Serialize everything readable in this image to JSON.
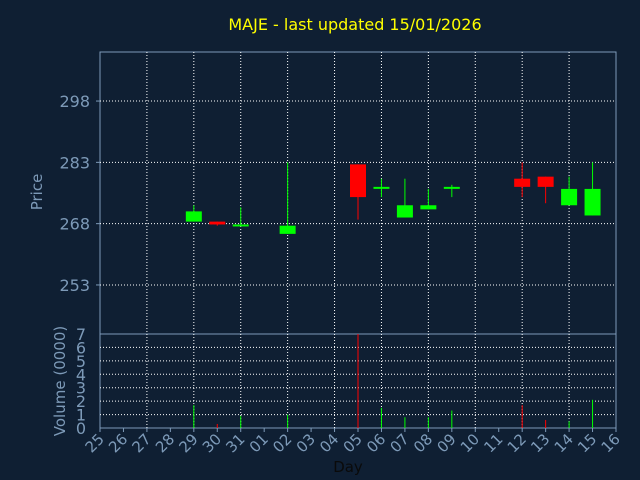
{
  "colors": {
    "background": "#0f1f33",
    "title": "#ffff00",
    "axis_text": "#7d9ab8",
    "grid": "#ffffff",
    "up": "#00ff00",
    "down": "#ff0000"
  },
  "chart_data": {
    "type": "candlestick",
    "title": "MAJE - last updated 15/01/2026",
    "xlabel": "Day",
    "ylabel": "Price",
    "volume_label": "Volume (0000)",
    "x_ticks": [
      "25",
      "26",
      "27",
      "28",
      "29",
      "30",
      "31",
      "01",
      "02",
      "03",
      "04",
      "05",
      "06",
      "07",
      "08",
      "09",
      "10",
      "11",
      "12",
      "13",
      "14",
      "15",
      "16"
    ],
    "price_ticks": [
      253,
      268,
      283,
      298
    ],
    "price_ylim": [
      241,
      310
    ],
    "volume_ticks": [
      0,
      1,
      2,
      3,
      4,
      5,
      6,
      7
    ],
    "volume_ylim": [
      0,
      7
    ],
    "grid": true,
    "candles": [
      {
        "day": "29",
        "open": 268.5,
        "high": 272.5,
        "low": 268.5,
        "close": 271.0,
        "volume": 1.7
      },
      {
        "day": "30",
        "open": 268.5,
        "high": 268.5,
        "low": 267.5,
        "close": 267.8,
        "volume": 0.3
      },
      {
        "day": "31",
        "open": 267.5,
        "high": 272.0,
        "low": 267.5,
        "close": 267.8,
        "volume": 0.9
      },
      {
        "day": "02",
        "open": 265.5,
        "high": 283.0,
        "low": 265.5,
        "close": 267.5,
        "volume": 1.0
      },
      {
        "day": "05",
        "open": 282.5,
        "high": 282.5,
        "low": 269.0,
        "close": 274.5,
        "volume": 7.0
      },
      {
        "day": "06",
        "open": 277.0,
        "high": 279.0,
        "low": 274.5,
        "close": 277.0,
        "volume": 1.5
      },
      {
        "day": "07",
        "open": 269.5,
        "high": 279.0,
        "low": 269.5,
        "close": 272.5,
        "volume": 0.8
      },
      {
        "day": "08",
        "open": 271.5,
        "high": 276.5,
        "low": 271.5,
        "close": 272.5,
        "volume": 0.8
      },
      {
        "day": "09",
        "open": 277.0,
        "high": 277.5,
        "low": 274.5,
        "close": 277.0,
        "volume": 1.3
      },
      {
        "day": "12",
        "open": 279.0,
        "high": 283.0,
        "low": 274.5,
        "close": 277.0,
        "volume": 1.7
      },
      {
        "day": "13",
        "open": 279.5,
        "high": 279.5,
        "low": 273.0,
        "close": 277.0,
        "volume": 0.6
      },
      {
        "day": "14",
        "open": 272.5,
        "high": 279.5,
        "low": 272.5,
        "close": 276.5,
        "volume": 0.5
      },
      {
        "day": "15",
        "open": 270.0,
        "high": 283.0,
        "low": 270.0,
        "close": 276.5,
        "volume": 2.1
      }
    ]
  }
}
